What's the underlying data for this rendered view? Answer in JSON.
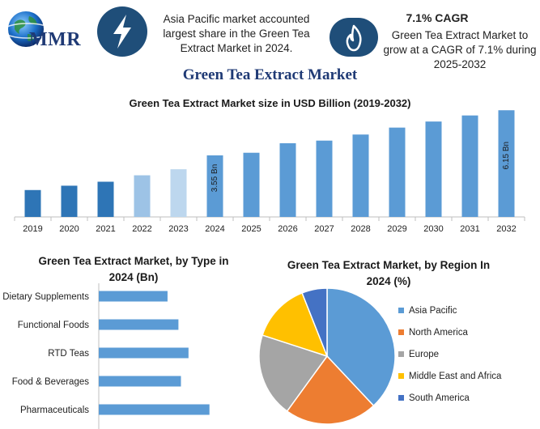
{
  "header": {
    "logo_text": "MMR",
    "info1_lines": [
      "Asia Pacific market accounted",
      "largest share in the Green Tea",
      "Extract Market in 2024."
    ],
    "cagr_title": "7.1% CAGR",
    "info2_lines": [
      "Green Tea Extract Market to",
      "grow at a CAGR of 7.1% during",
      "2025-2032"
    ],
    "icon1": "lightning-bolt-icon",
    "icon2": "flame-icon",
    "badge_color": "#1f4e79"
  },
  "main_title": "Green Tea Extract Market",
  "chart_data": [
    {
      "type": "bar",
      "title": "Green Tea Extract Market size in USD Billion (2019-2032)",
      "xlabel": "",
      "ylabel": "",
      "categories": [
        "2019",
        "2020",
        "2021",
        "2022",
        "2023",
        "2024",
        "2025",
        "2026",
        "2027",
        "2028",
        "2029",
        "2030",
        "2031",
        "2032"
      ],
      "values": [
        1.55,
        1.8,
        2.03,
        2.4,
        2.75,
        3.55,
        3.7,
        4.25,
        4.4,
        4.75,
        5.15,
        5.5,
        5.85,
        6.15
      ],
      "colors": [
        "#2e75b6",
        "#2e75b6",
        "#2e75b6",
        "#9dc3e6",
        "#bdd7ee",
        "#5b9bd5",
        "#5b9bd5",
        "#5b9bd5",
        "#5b9bd5",
        "#5b9bd5",
        "#5b9bd5",
        "#5b9bd5",
        "#5b9bd5",
        "#5b9bd5"
      ],
      "data_labels": [
        {
          "index": 5,
          "text": "3.55 Bn"
        },
        {
          "index": 13,
          "text": "6.15 Bn"
        }
      ],
      "ylim": [
        0,
        6.3
      ],
      "grid": false,
      "legend": "none"
    },
    {
      "type": "bar",
      "orientation": "horizontal",
      "title_lines": [
        "Green Tea Extract Market, by Type in",
        "2024 (Bn)"
      ],
      "categories": [
        "Dietary Supplements",
        "Functional Foods",
        "RTD Teas",
        "Food & Beverages",
        "Pharmaceuticals"
      ],
      "values": [
        0.82,
        0.95,
        1.07,
        0.98,
        1.32
      ],
      "xlim": [
        0,
        1.4
      ],
      "color": "#5b9bd5",
      "grid": false
    },
    {
      "type": "pie",
      "title_lines": [
        "Green Tea Extract Market, by Region In",
        "2024 (%)"
      ],
      "categories": [
        "Asia Pacific",
        "North America",
        "Europe",
        "Middle East and Africa",
        "South America"
      ],
      "values": [
        38,
        22,
        20,
        14,
        6
      ],
      "colors": [
        "#5b9bd5",
        "#ed7d31",
        "#a5a5a5",
        "#ffc000",
        "#4472c4"
      ],
      "legend": "right"
    }
  ]
}
